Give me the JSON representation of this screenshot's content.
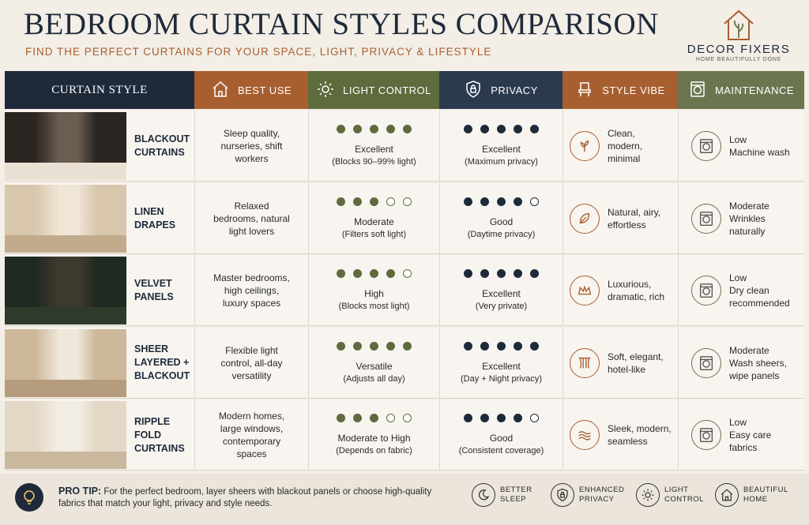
{
  "header": {
    "title": "BEDROOM CURTAIN STYLES COMPARISON",
    "subtitle": "FIND THE PERFECT CURTAINS FOR YOUR SPACE, LIGHT, PRIVACY & LIFESTYLE",
    "logo_name": "DECOR FIXERS",
    "logo_tagline": "HOME BEAUTIFULLY DONE"
  },
  "table": {
    "columns": [
      "CURTAIN STYLE",
      "BEST USE",
      "LIGHT CONTROL",
      "PRIVACY",
      "STYLE VIBE",
      "MAINTENANCE"
    ],
    "rating_max": 5,
    "rows": [
      {
        "style": "BLACKOUT CURTAINS",
        "best_use": "Sleep quality, nurseries, shift workers",
        "light_rating": 5,
        "light_label": "Excellent",
        "light_note": "(Blocks 90–99% light)",
        "privacy_rating": 5,
        "privacy_label": "Excellent",
        "privacy_note": "(Maximum privacy)",
        "style_vibe": "Clean, modern, minimal",
        "maintenance_level": "Low",
        "maintenance_note": "Machine wash"
      },
      {
        "style": "LINEN DRAPES",
        "best_use": "Relaxed bedrooms, natural light lovers",
        "light_rating": 3,
        "light_label": "Moderate",
        "light_note": "(Filters soft light)",
        "privacy_rating": 4,
        "privacy_label": "Good",
        "privacy_note": "(Daytime privacy)",
        "style_vibe": "Natural, airy, effortless",
        "maintenance_level": "Moderate",
        "maintenance_note": "Wrinkles naturally"
      },
      {
        "style": "VELVET PANELS",
        "best_use": "Master bedrooms, high ceilings, luxury spaces",
        "light_rating": 4,
        "light_label": "High",
        "light_note": "(Blocks most light)",
        "privacy_rating": 5,
        "privacy_label": "Excellent",
        "privacy_note": "(Very private)",
        "style_vibe": "Luxurious, dramatic, rich",
        "maintenance_level": "Low",
        "maintenance_note": "Dry clean recommended"
      },
      {
        "style": "SHEER LAYERED + BLACKOUT",
        "best_use": "Flexible light control, all-day versatility",
        "light_rating": 5,
        "light_label": "Versatile",
        "light_note": "(Adjusts all day)",
        "privacy_rating": 5,
        "privacy_label": "Excellent",
        "privacy_note": "(Day + Night privacy)",
        "style_vibe": "Soft, elegant, hotel-like",
        "maintenance_level": "Moderate",
        "maintenance_note": "Wash sheers, wipe panels"
      },
      {
        "style": "RIPPLE FOLD CURTAINS",
        "best_use": "Modern homes, large windows, contemporary spaces",
        "light_rating": 3,
        "light_label": "Moderate to High",
        "light_note": "(Depends on fabric)",
        "privacy_rating": 4,
        "privacy_label": "Good",
        "privacy_note": "(Consistent coverage)",
        "style_vibe": "Sleek, modern, seamless",
        "maintenance_level": "Low",
        "maintenance_note": "Easy care fabrics"
      }
    ]
  },
  "footer": {
    "tip_label": "PRO TIP:",
    "tip_text": "For the perfect bedroom, layer sheers with blackout panels or choose high-quality fabrics that match your light, privacy and style needs.",
    "badges": [
      "BETTER SLEEP",
      "ENHANCED PRIVACY",
      "LIGHT CONTROL",
      "BEAUTIFUL HOME"
    ]
  }
}
